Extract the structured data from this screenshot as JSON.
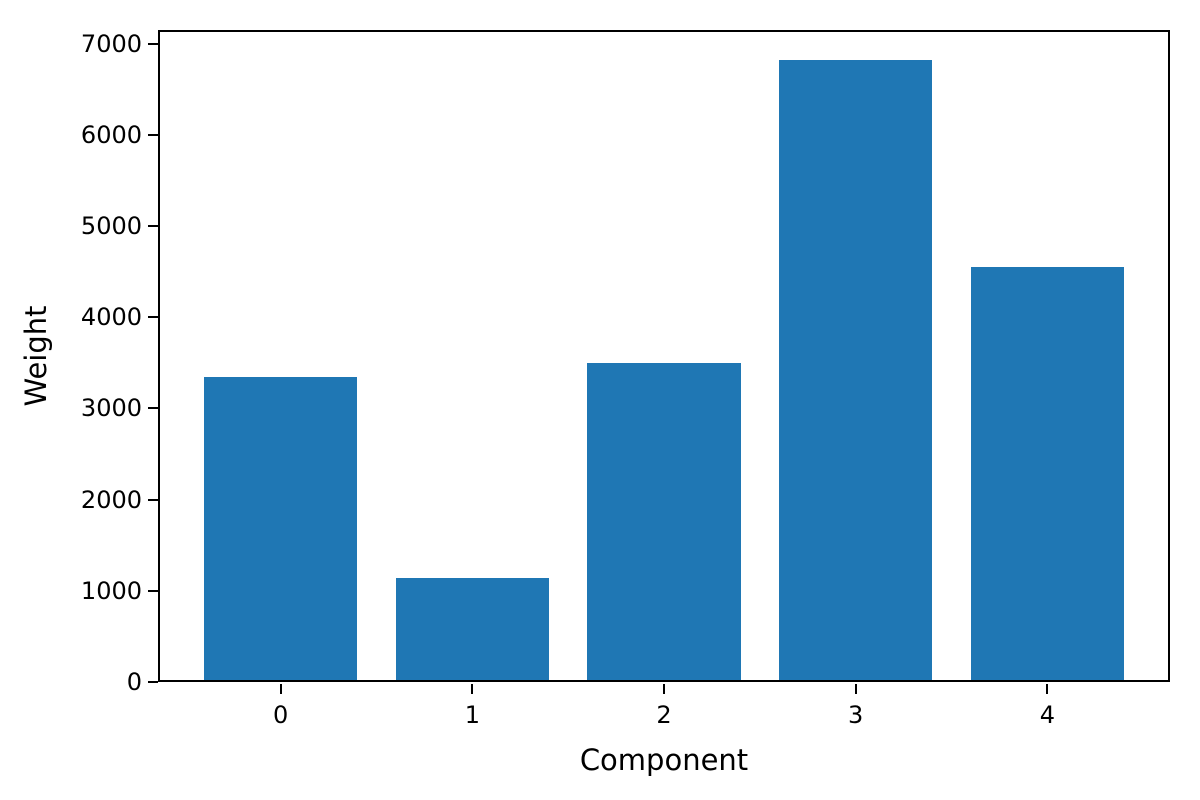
{
  "chart_data": {
    "type": "bar",
    "categories": [
      "0",
      "1",
      "2",
      "3",
      "4"
    ],
    "values": [
      3340,
      1140,
      3500,
      6820,
      4550
    ],
    "title": "",
    "xlabel": "Component",
    "ylabel": "Weight",
    "ylim": [
      0,
      7150
    ],
    "yticks": [
      0,
      1000,
      2000,
      3000,
      4000,
      5000,
      6000,
      7000
    ],
    "bar_color": "#1f77b4",
    "axis_color": "#000000",
    "grid": false,
    "legend": null
  }
}
